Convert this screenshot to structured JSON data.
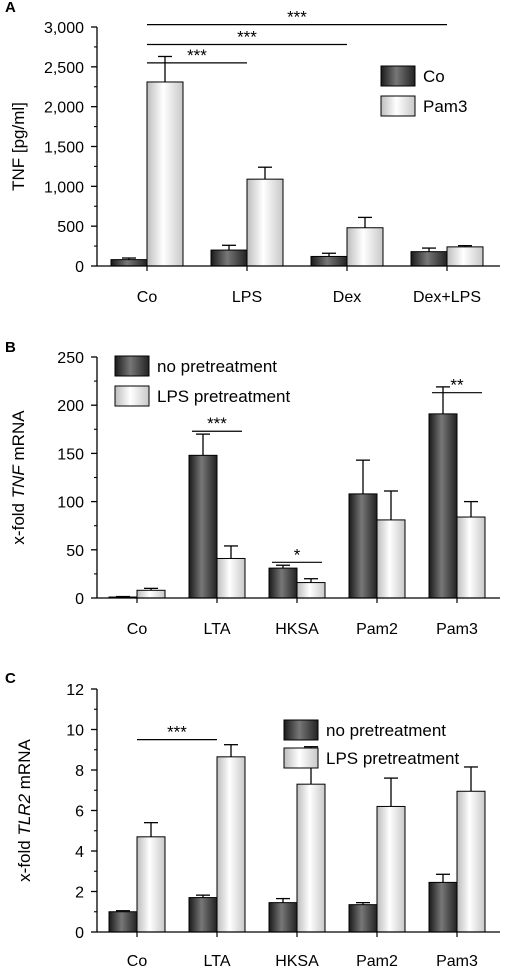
{
  "chart_data": [
    {
      "panel_label": "A",
      "type": "bar",
      "categories": [
        "Co",
        "LPS",
        "Dex",
        "Dex+LPS"
      ],
      "series": [
        {
          "name": "Co",
          "values": [
            80,
            200,
            120,
            180
          ],
          "errors": [
            20,
            60,
            40,
            45
          ]
        },
        {
          "name": "Pam3",
          "values": [
            2310,
            1090,
            480,
            240
          ],
          "errors": [
            320,
            150,
            130,
            15
          ]
        }
      ],
      "ylabel": "TNF [pg/ml]",
      "ylabel_parts": [
        {
          "text": "TNF [pg/ml]",
          "italic": false
        }
      ],
      "ylim": [
        0,
        3000
      ],
      "yticks": [
        0,
        500,
        1000,
        1500,
        2000,
        2500,
        3000
      ],
      "yticklabels": [
        "0",
        "500",
        "1,000",
        "1,500",
        "2,000",
        "2,500",
        "3,000"
      ],
      "legend": {
        "position": "top-right"
      },
      "significance": [
        {
          "from": 0,
          "to": 1,
          "label": "***",
          "level": 2550
        },
        {
          "from": 0,
          "to": 2,
          "label": "***",
          "level": 2780
        },
        {
          "from": 0,
          "to": 3,
          "label": "***",
          "level": 3030
        }
      ]
    },
    {
      "panel_label": "B",
      "type": "bar",
      "categories": [
        "Co",
        "LTA",
        "HKSA",
        "Pam2",
        "Pam3"
      ],
      "series": [
        {
          "name": "no pretreatment",
          "values": [
            1,
            148,
            31,
            108,
            191
          ],
          "errors": [
            0.5,
            22,
            3,
            35,
            28
          ]
        },
        {
          "name": "LPS pretreatment",
          "values": [
            8,
            41,
            16,
            81,
            84
          ],
          "errors": [
            2,
            13,
            4,
            30,
            16
          ]
        }
      ],
      "ylabel": "x-fold TNF mRNA",
      "ylabel_parts": [
        {
          "text": "x-fold ",
          "italic": false
        },
        {
          "text": "TNF",
          "italic": true
        },
        {
          "text": " mRNA",
          "italic": false
        }
      ],
      "ylim": [
        0,
        250
      ],
      "yticks": [
        0,
        50,
        100,
        150,
        200,
        250
      ],
      "yticklabels": [
        "0",
        "50",
        "100",
        "150",
        "200",
        "250"
      ],
      "legend": {
        "position": "top-left"
      },
      "significance": [
        {
          "group": 1,
          "label": "***",
          "level": 173
        },
        {
          "group": 2,
          "label": "*",
          "level": 37
        },
        {
          "group": 4,
          "label": "**",
          "level": 213
        }
      ]
    },
    {
      "panel_label": "C",
      "type": "bar",
      "categories": [
        "Co",
        "LTA",
        "HKSA",
        "Pam2",
        "Pam3"
      ],
      "series": [
        {
          "name": "no pretreatment",
          "values": [
            1.0,
            1.7,
            1.45,
            1.35,
            2.45
          ],
          "errors": [
            0.05,
            0.12,
            0.2,
            0.1,
            0.4
          ]
        },
        {
          "name": "LPS pretreatment",
          "values": [
            4.7,
            8.65,
            7.3,
            6.2,
            6.95
          ],
          "errors": [
            0.7,
            0.6,
            1.85,
            1.4,
            1.2
          ]
        }
      ],
      "ylabel": "x-fold TLR2 mRNA",
      "ylabel_parts": [
        {
          "text": "x-fold ",
          "italic": false
        },
        {
          "text": "TLR2",
          "italic": true
        },
        {
          "text": " mRNA",
          "italic": false
        }
      ],
      "ylim": [
        0,
        12
      ],
      "yticks": [
        0,
        2,
        4,
        6,
        8,
        10,
        12
      ],
      "yticklabels": [
        "0",
        "2",
        "4",
        "6",
        "8",
        "10",
        "12"
      ],
      "legend": {
        "position": "top-right"
      },
      "significance": [
        {
          "from": 0,
          "to": 1,
          "label": "***",
          "level": 9.5
        }
      ]
    }
  ]
}
